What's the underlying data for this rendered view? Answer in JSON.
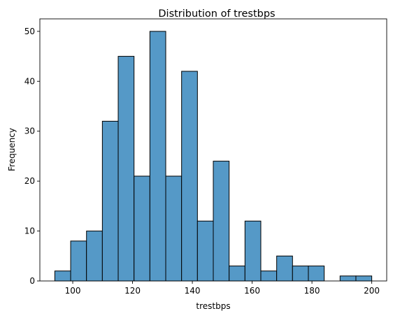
{
  "chart_data": {
    "type": "bar",
    "title": "Distribution of trestbps",
    "xlabel": "trestbps",
    "ylabel": "Frequency",
    "bin_edges": [
      94,
      99.3,
      104.6,
      109.9,
      115.2,
      120.5,
      125.8,
      131.1,
      136.4,
      141.7,
      147,
      152.3,
      157.6,
      162.9,
      168.2,
      173.5,
      178.8,
      184.1,
      189.4,
      194.7,
      200
    ],
    "counts": [
      2,
      8,
      10,
      32,
      45,
      21,
      50,
      21,
      42,
      12,
      24,
      3,
      12,
      2,
      5,
      3,
      3,
      0,
      1,
      1
    ],
    "xlim": [
      89,
      205
    ],
    "ylim": [
      0,
      52.5
    ],
    "xticks": [
      100,
      120,
      140,
      160,
      180,
      200
    ],
    "yticks": [
      0,
      10,
      20,
      30,
      40,
      50
    ],
    "bar_color": "#5599c7",
    "edge_color": "#000000",
    "grid": false,
    "legend": "none"
  }
}
